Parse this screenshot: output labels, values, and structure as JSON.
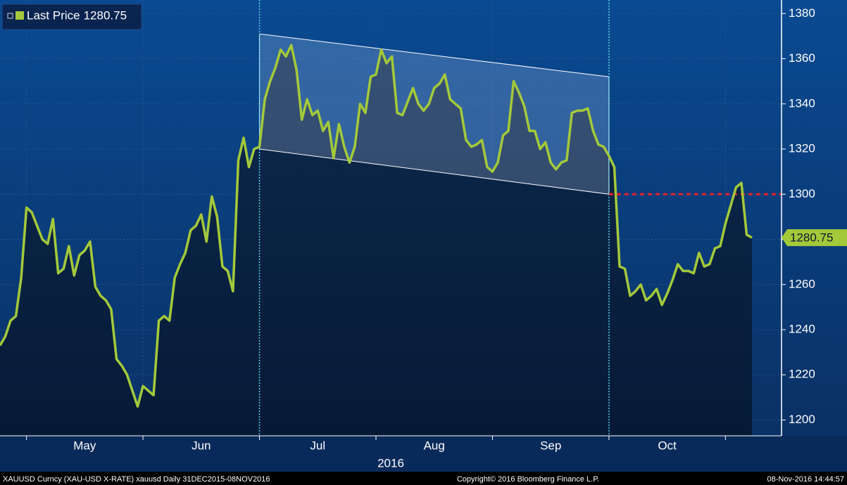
{
  "chart_data": {
    "type": "line",
    "series": [
      {
        "name": "Last Price",
        "color": "#a4c93a",
        "values": [
          1233,
          1237,
          1244,
          1246,
          1263,
          1294,
          1292,
          1286,
          1280,
          1278,
          1289,
          1265,
          1267,
          1277,
          1264,
          1273,
          1275,
          1279,
          1259,
          1255,
          1253,
          1249,
          1227,
          1224,
          1220,
          1213,
          1206,
          1215,
          1213,
          1211,
          1244,
          1246,
          1244,
          1263,
          1269,
          1274,
          1284,
          1286,
          1291,
          1279,
          1299,
          1290,
          1268,
          1266,
          1257,
          1315,
          1325,
          1312,
          1320,
          1321,
          1342,
          1350,
          1356,
          1364,
          1361,
          1366,
          1355,
          1333,
          1342,
          1335,
          1337,
          1328,
          1332,
          1316,
          1331,
          1321,
          1314,
          1321,
          1340,
          1336,
          1352,
          1353,
          1364,
          1358,
          1361,
          1336,
          1335,
          1341,
          1347,
          1340,
          1337,
          1340,
          1347,
          1349,
          1353,
          1342,
          1340,
          1338,
          1324,
          1321,
          1322,
          1324,
          1312,
          1310,
          1314,
          1326,
          1328,
          1350,
          1345,
          1339,
          1328,
          1328,
          1320,
          1323,
          1314,
          1311,
          1314,
          1315,
          1336,
          1337,
          1337,
          1338,
          1328,
          1322,
          1321,
          1317,
          1312,
          1268,
          1267,
          1255,
          1257,
          1260,
          1253,
          1255,
          1258,
          1251,
          1256,
          1262,
          1269,
          1266,
          1266,
          1265,
          1274,
          1268,
          1269,
          1276,
          1277,
          1287,
          1295,
          1303,
          1305,
          1282,
          1280.75
        ]
      }
    ],
    "categories": [
      null,
      null,
      null,
      null,
      null,
      null,
      null,
      null,
      null,
      null,
      null,
      null,
      null,
      null,
      null,
      null,
      "May",
      null,
      null,
      null,
      null,
      null,
      null,
      null,
      null,
      null,
      null,
      null,
      null,
      null,
      null,
      null,
      null,
      null,
      null,
      null,
      null,
      null,
      "Jun",
      null,
      null,
      null,
      null,
      null,
      null,
      null,
      null,
      null,
      null,
      null,
      null,
      null,
      null,
      null,
      null,
      null,
      null,
      null,
      null,
      null,
      "Jul",
      null,
      null,
      null,
      null,
      null,
      null,
      null,
      null,
      null,
      null,
      null,
      null,
      null,
      null,
      null,
      null,
      null,
      null,
      null,
      null,
      null,
      "Aug",
      null,
      null,
      null,
      null,
      null,
      null,
      null,
      null,
      null,
      null,
      null,
      null,
      null,
      null,
      null,
      null,
      null,
      null,
      null,
      null,
      null,
      "Sep",
      null,
      null,
      null,
      null,
      null,
      null,
      null,
      null,
      null,
      null,
      null,
      null,
      null,
      null,
      null,
      null,
      null,
      null,
      null,
      null,
      null,
      "Oct",
      null,
      null,
      null,
      null,
      null,
      null,
      null,
      null,
      null,
      null,
      null,
      null,
      null,
      null,
      null,
      null
    ],
    "x_year_label": "2016",
    "ylim": [
      1193,
      1386
    ],
    "yticks": [
      1200,
      1220,
      1240,
      1260,
      1280,
      1300,
      1320,
      1340,
      1360,
      1380
    ],
    "grid": true,
    "channel": {
      "span": [
        49,
        115
      ],
      "upper": [
        1371,
        1352
      ],
      "lower": [
        1320,
        1300
      ]
    },
    "level": 1300,
    "footer": {
      "left": "XAUUSD Curncy (XAU-USD X-RATE) xauusd  Daily 31DEC2015-08NOV2016",
      "center": "Copyright© 2016 Bloomberg Finance L.P.",
      "right": "08-Nov-2016 14:44:57"
    }
  }
}
